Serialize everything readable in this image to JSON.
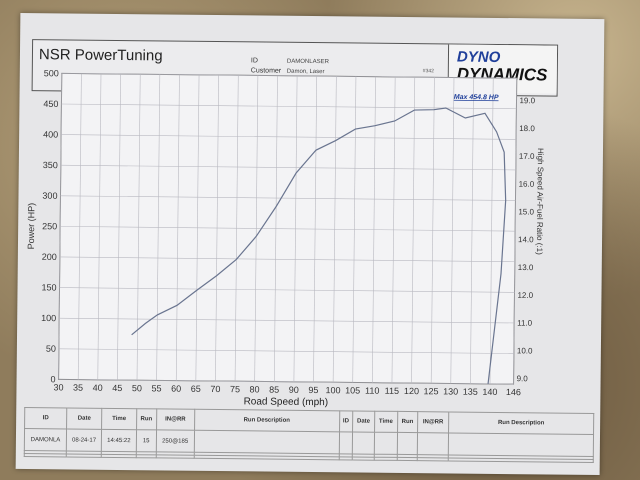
{
  "header": {
    "brand": "NSR PowerTuning",
    "id_label": "ID",
    "customer_label": "Customer",
    "id_value": "DAMONLASER",
    "customer_value": "Damon, Laser",
    "run_number": "#342",
    "logo_line1": "DYNO",
    "logo_line2": "DYNAMICS"
  },
  "chart_data": {
    "type": "line",
    "title": "",
    "xlabel": "Road Speed (mph)",
    "ylabel": "Power (HP)",
    "y2label": "High Speed Air-Fuel Ratio (:1)",
    "xlim": [
      30,
      146
    ],
    "ylim": [
      0,
      500
    ],
    "y2lim": [
      9.0,
      19.0
    ],
    "grid": true,
    "x_ticks": [
      "30",
      "35",
      "40",
      "45",
      "50",
      "55",
      "60",
      "65",
      "70",
      "75",
      "80",
      "85",
      "90",
      "95",
      "100",
      "105",
      "110",
      "115",
      "120",
      "125",
      "130",
      "135",
      "140",
      "146"
    ],
    "y_ticks": [
      "0",
      "50",
      "100",
      "150",
      "200",
      "250",
      "300",
      "350",
      "400",
      "450",
      "500"
    ],
    "y2_ticks": [
      "9.0",
      "10.0",
      "11.0",
      "12.0",
      "13.0",
      "14.0",
      "15.0",
      "16.0",
      "17.0",
      "18.0",
      "19.0"
    ],
    "annotation": "Max 454.8 HP",
    "line_color": "#6a7590",
    "series": [
      {
        "x": [
          48.5,
          52,
          55,
          60,
          65,
          70,
          75,
          80,
          85,
          90,
          95,
          100,
          105,
          110,
          115,
          120,
          125,
          128,
          133,
          138,
          141,
          143,
          143.5,
          142.5,
          141,
          139.5
        ],
        "y": [
          74,
          93,
          107,
          123,
          148,
          172,
          199,
          237,
          286,
          341,
          379,
          395,
          414,
          420,
          428,
          446,
          447,
          450,
          434,
          442,
          412,
          379,
          300,
          180,
          90,
          0
        ]
      }
    ]
  },
  "table": {
    "headers": [
      "ID",
      "Date",
      "Time",
      "Run",
      "IN@RR",
      "Run Description"
    ],
    "row": {
      "id": "DAMONLA",
      "date": "08-24-17",
      "time": "14:45:22",
      "run": "15",
      "inrr": "250@185",
      "desc": ""
    }
  }
}
